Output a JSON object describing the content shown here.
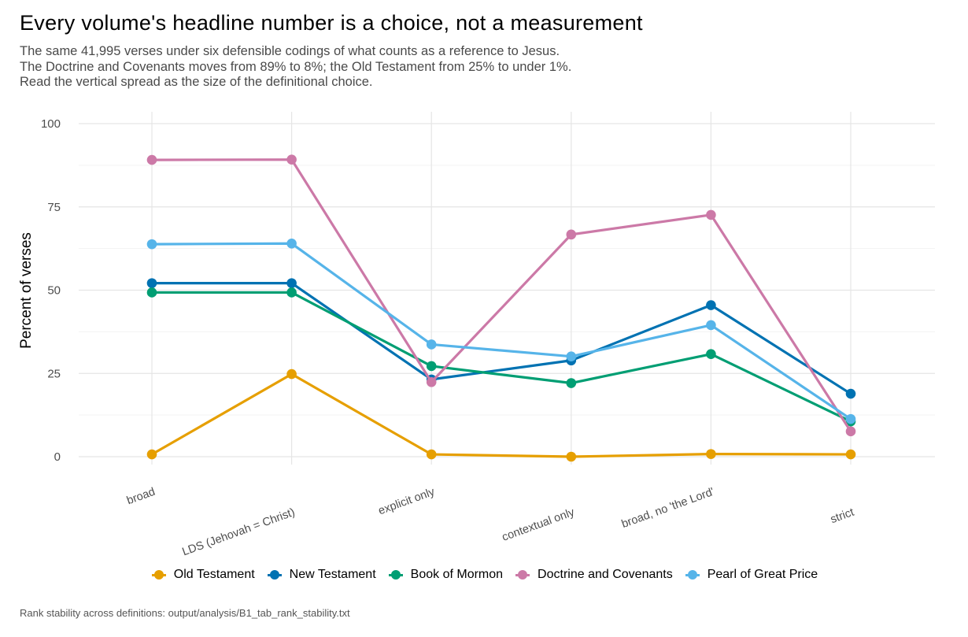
{
  "header": {
    "title": "Every volume's headline number is a choice, not a measurement",
    "subtitle_lines": [
      "The same 41,995 verses under six defensible codings of what counts as a reference to Jesus.",
      "The Doctrine and Covenants moves from 89% to 8%; the Old Testament from 25% to under 1%.",
      "Read the vertical spread as the size of the definitional choice."
    ]
  },
  "caption": "Rank stability across definitions: output/analysis/B1_tab_rank_stability.txt",
  "chart_data": {
    "type": "line",
    "ylabel": "Percent of verses",
    "xlabel": "",
    "ylim": [
      0,
      100
    ],
    "yticks": [
      0,
      25,
      50,
      75,
      100
    ],
    "grid": true,
    "legend_position": "bottom",
    "categories": [
      "broad",
      "LDS (Jehovah = Christ)",
      "explicit only",
      "contextual only",
      "broad, no 'the Lord'",
      "strict"
    ],
    "series": [
      {
        "name": "Old Testament",
        "color": "#E69F00",
        "values": [
          0.7,
          24.8,
          0.7,
          0.0,
          0.8,
          0.7
        ]
      },
      {
        "name": "New Testament",
        "color": "#0072B2",
        "values": [
          52.1,
          52.1,
          23.2,
          28.9,
          45.5,
          18.9
        ]
      },
      {
        "name": "Book of Mormon",
        "color": "#009E73",
        "values": [
          49.3,
          49.3,
          27.2,
          22.1,
          30.8,
          10.6
        ]
      },
      {
        "name": "Doctrine and Covenants",
        "color": "#CC79A7",
        "values": [
          89.1,
          89.2,
          22.4,
          66.7,
          72.6,
          7.6
        ]
      },
      {
        "name": "Pearl of Great Price",
        "color": "#56B4E9",
        "values": [
          63.8,
          64.0,
          33.7,
          30.1,
          39.5,
          11.3
        ]
      }
    ]
  }
}
